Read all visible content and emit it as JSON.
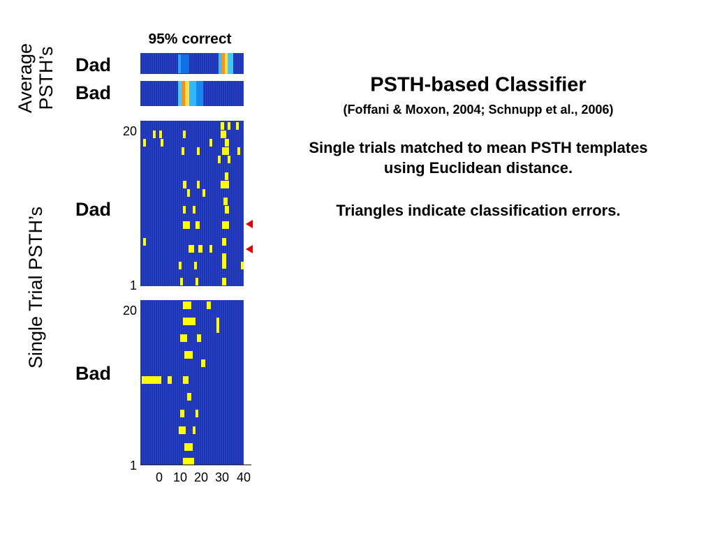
{
  "slide": {
    "accuracy": "95% correct",
    "average_label": [
      "Average",
      "PSTH’s"
    ],
    "single_label": "Single Trial PSTH’s",
    "row_labels": [
      "Dad",
      "Bad",
      "Dad",
      "Bad"
    ],
    "dad_ticks": [
      "20",
      "1"
    ],
    "bad_ticks": [
      "20",
      "1"
    ],
    "x_ticks": [
      "0",
      "10",
      "20",
      "30",
      "40"
    ],
    "title": "PSTH-based Classifier",
    "citation": "(Foffani & Moxon, 2004; Schnupp et al., 2006)",
    "lines": [
      "Single trials matched to mean PSTH templates",
      "using Euclidean distance.",
      "Triangles indicate classification errors."
    ]
  }
}
